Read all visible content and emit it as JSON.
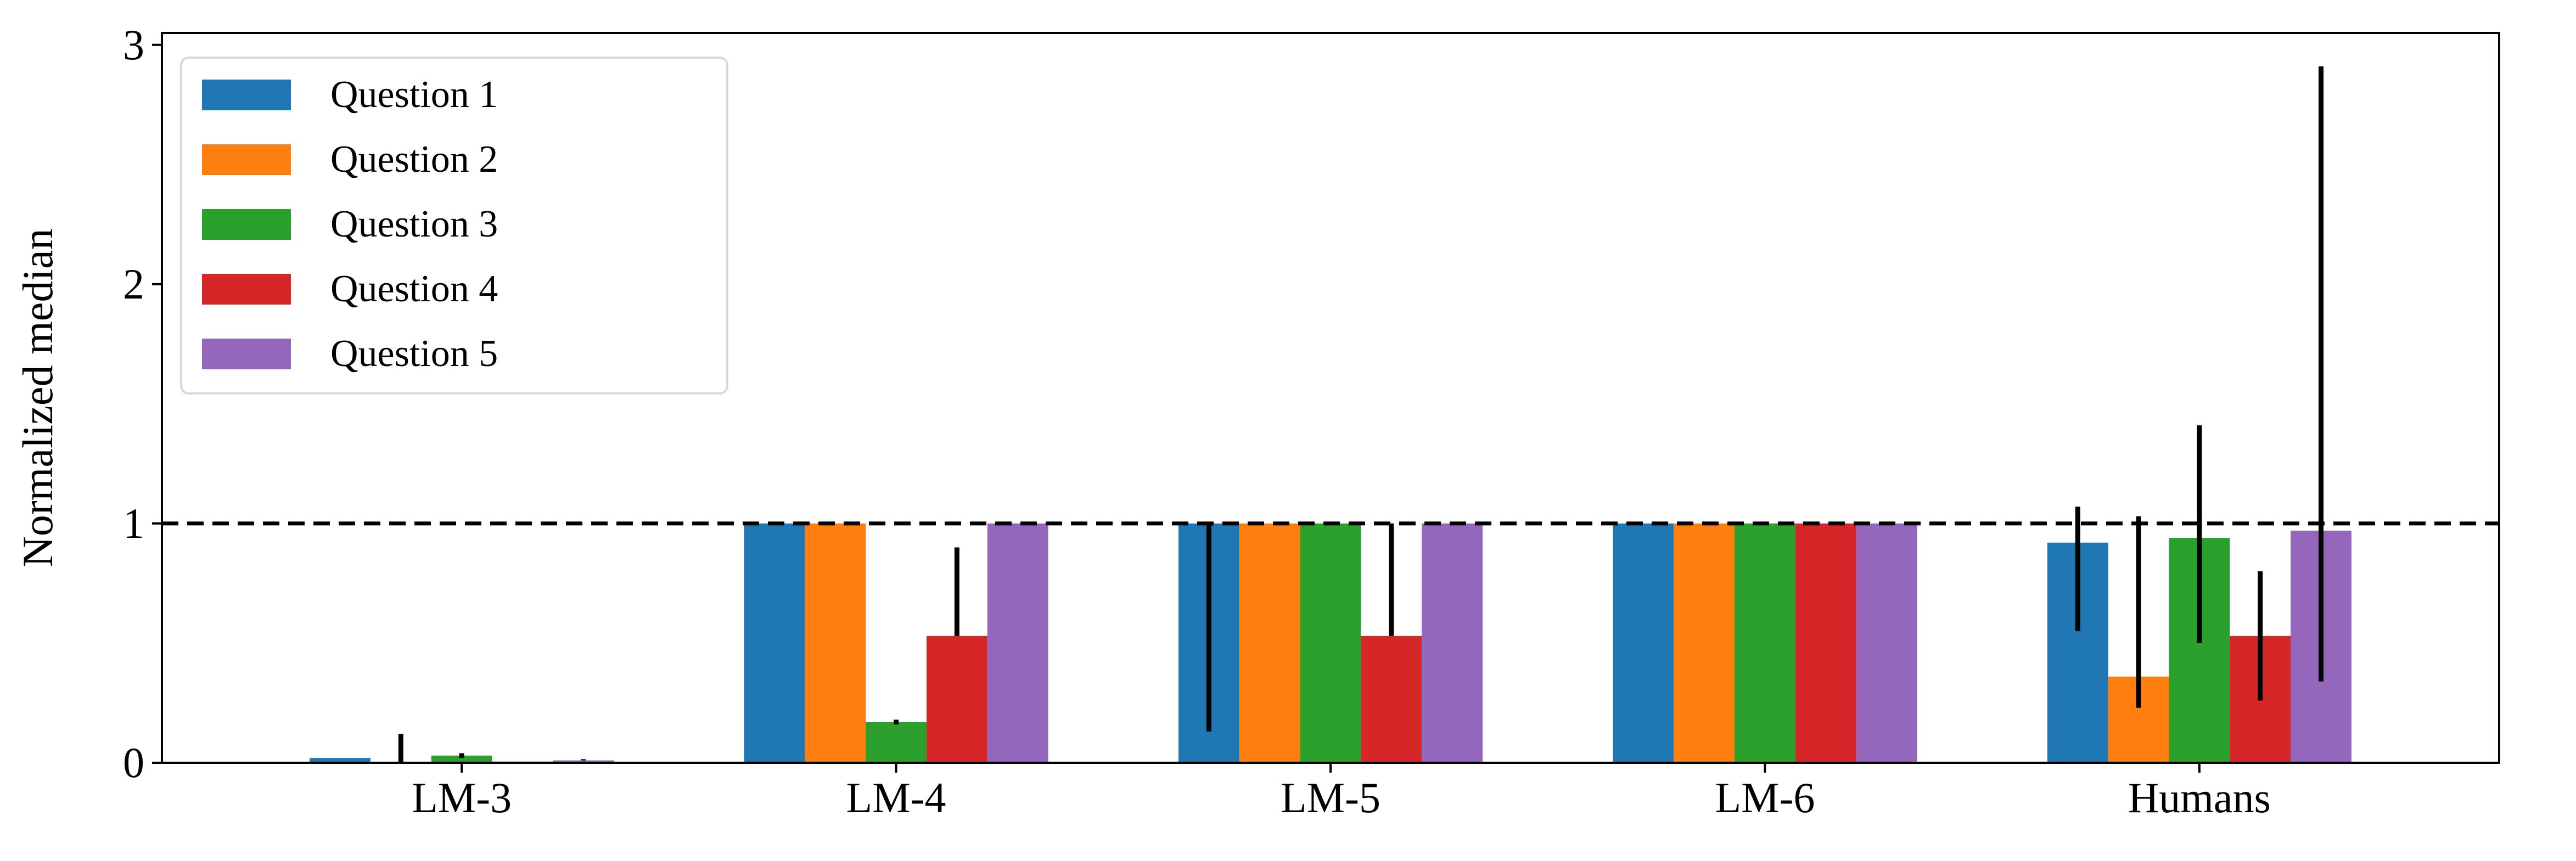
{
  "chart_data": {
    "type": "bar",
    "ylabel": "Normalized median",
    "xlabel": "",
    "ylim": [
      0,
      3.05
    ],
    "yticks": [
      0,
      1,
      2,
      3
    ],
    "grid": false,
    "legend_position": "top-left",
    "reference_line": {
      "y": 1,
      "style": "dashed",
      "color": "#000000"
    },
    "categories": [
      "LM-3",
      "LM-4",
      "LM-5",
      "LM-6",
      "Humans"
    ],
    "series": [
      {
        "name": "Question 1",
        "color": "#1f77b4",
        "values": [
          0.02,
          1.0,
          1.0,
          1.0,
          0.92
        ],
        "errors": [
          [
            0.02,
            0.02
          ],
          [
            1.0,
            1.0
          ],
          [
            0.13,
            1.0
          ],
          [
            1.0,
            1.0
          ],
          [
            0.55,
            1.07
          ]
        ]
      },
      {
        "name": "Question 2",
        "color": "#ff7f0e",
        "values": [
          0.0,
          1.0,
          1.0,
          1.0,
          0.36
        ],
        "errors": [
          [
            0.0,
            0.12
          ],
          [
            1.0,
            1.0
          ],
          [
            1.0,
            1.0
          ],
          [
            1.0,
            1.0
          ],
          [
            0.23,
            1.03
          ]
        ]
      },
      {
        "name": "Question 3",
        "color": "#2ca02c",
        "values": [
          0.03,
          0.17,
          1.0,
          1.0,
          0.94
        ],
        "errors": [
          [
            0.02,
            0.04
          ],
          [
            0.16,
            0.18
          ],
          [
            1.0,
            1.0
          ],
          [
            1.0,
            1.0
          ],
          [
            0.5,
            1.41
          ]
        ]
      },
      {
        "name": "Question 4",
        "color": "#d62728",
        "values": [
          0.005,
          0.53,
          0.53,
          1.0,
          0.53
        ],
        "errors": [
          [
            0.005,
            0.005
          ],
          [
            0.53,
            0.9
          ],
          [
            0.53,
            1.0
          ],
          [
            1.0,
            1.0
          ],
          [
            0.26,
            0.8
          ]
        ]
      },
      {
        "name": "Question 5",
        "color": "#9467bd",
        "values": [
          0.01,
          1.0,
          1.0,
          1.0,
          0.97
        ],
        "errors": [
          [
            0.01,
            0.015
          ],
          [
            1.0,
            1.0
          ],
          [
            1.0,
            1.0
          ],
          [
            1.0,
            1.0
          ],
          [
            0.34,
            2.91
          ]
        ]
      }
    ]
  }
}
